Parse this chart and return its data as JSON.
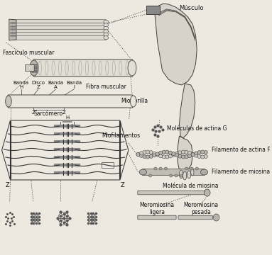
{
  "bg_color": "#ede9e0",
  "labels": {
    "musculo": "Músculo",
    "fasciculo": "Fascículo muscular",
    "fibra": "Fibra muscular",
    "banda_h": "Banda\nH",
    "disco_z": "Disco\nZ",
    "banda_a": "Banda\nA",
    "banda_i": "Banda\nI",
    "sarcomero": "Sarcómero",
    "miofibrilla": "Miofibrilla",
    "miofilamentos": "Miofilamentos",
    "mol_actina_g": "Moléculas de actina G",
    "fil_actina_f": "Filamento de actina F",
    "fil_miosina": "Filamento de miosina",
    "mol_miosina": "Molécula de miosina",
    "meromiosina_l": "Meromiosina\nligera",
    "meromiosina_p": "Meromiosina\npesada",
    "h_label": "H",
    "z_label": "Z"
  },
  "lc": "#404040",
  "tc": "#111111",
  "fs": 5.5
}
